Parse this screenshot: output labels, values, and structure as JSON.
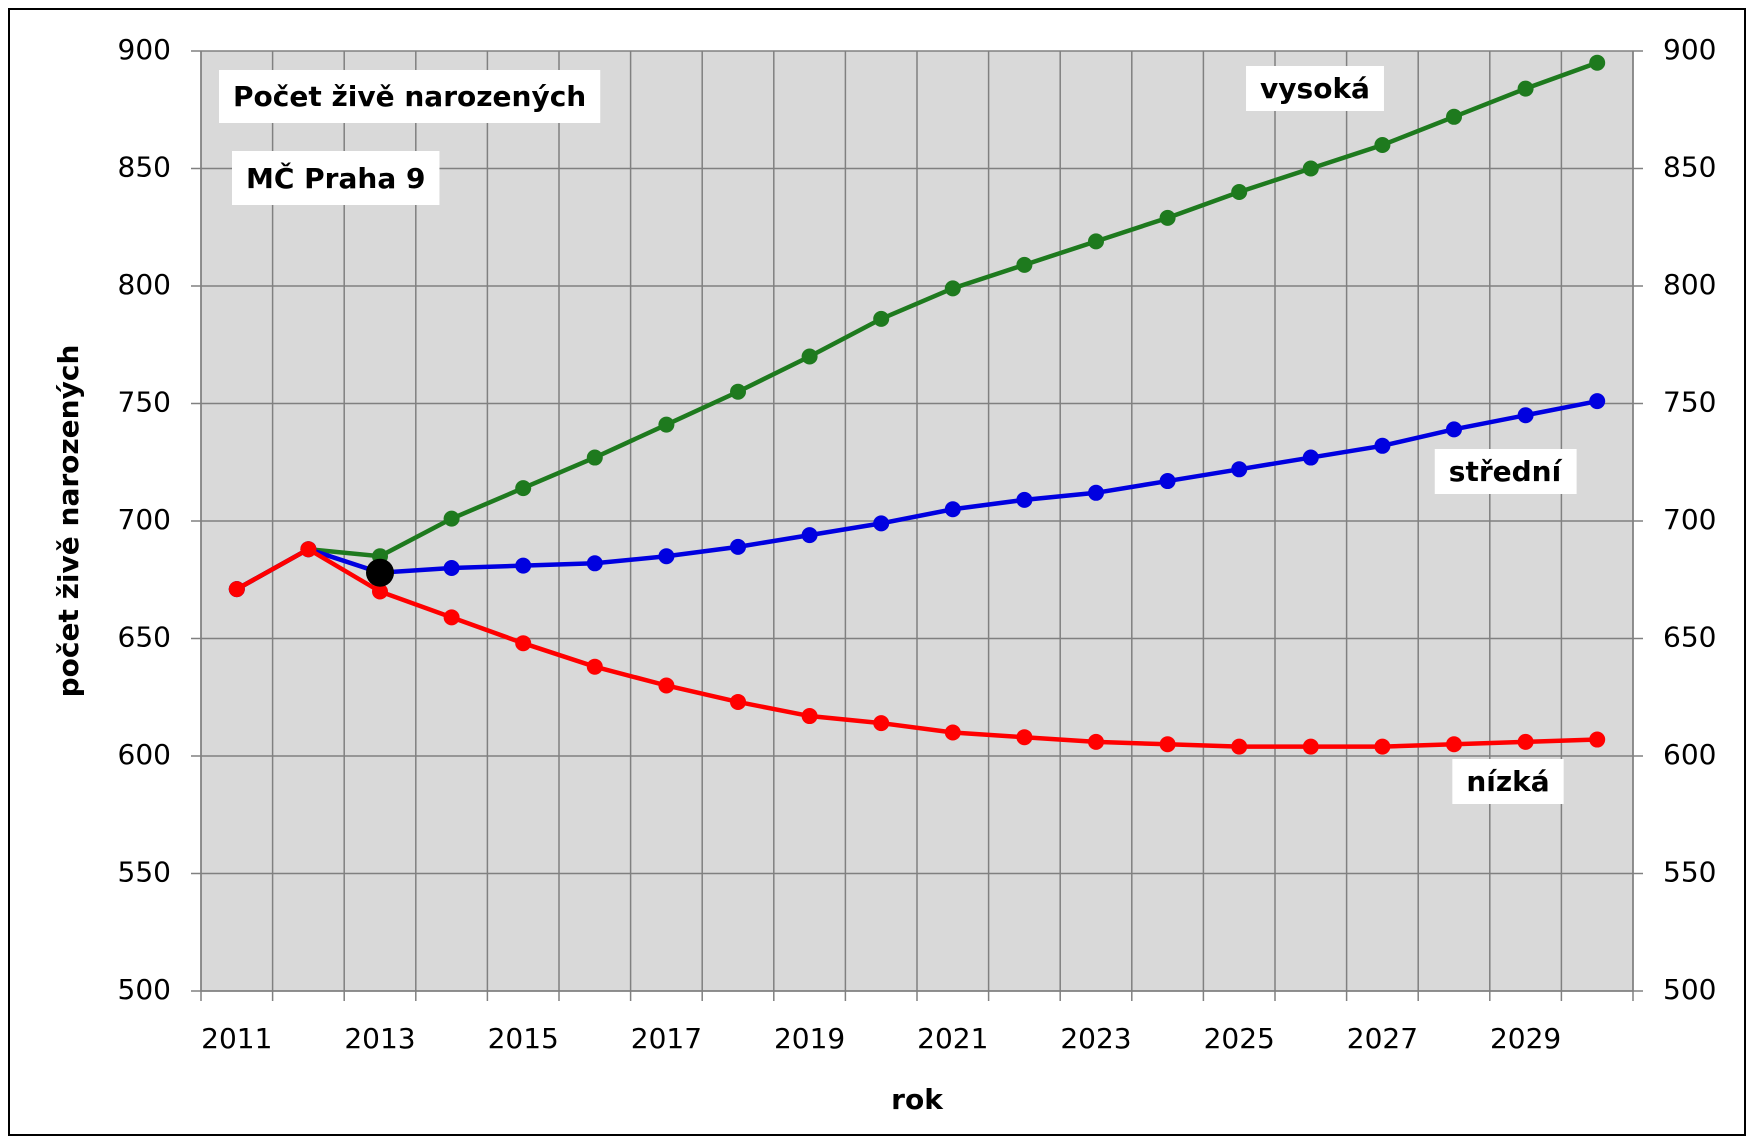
{
  "chart_data": {
    "type": "line",
    "title": "Počet živě narozených",
    "subtitle": "MČ Praha 9",
    "x_label": "rok",
    "y_label": "počet živě narozených",
    "x": [
      2011,
      2012,
      2013,
      2014,
      2015,
      2016,
      2017,
      2018,
      2019,
      2020,
      2021,
      2022,
      2023,
      2024,
      2025,
      2026,
      2027,
      2028,
      2029,
      2030
    ],
    "xlim": [
      2010.5,
      2030.5
    ],
    "xticks": [
      2011,
      2013,
      2015,
      2017,
      2019,
      2021,
      2023,
      2025,
      2027,
      2029
    ],
    "ylim": [
      500,
      900
    ],
    "yticks": [
      500,
      550,
      600,
      650,
      700,
      750,
      800,
      850,
      900
    ],
    "y2lim": [
      500,
      900
    ],
    "y2ticks": [
      500,
      550,
      600,
      650,
      700,
      750,
      800,
      850,
      900
    ],
    "grid": true,
    "series": [
      {
        "name": "vysoká",
        "color": "#1e7a1e",
        "values": [
          671,
          688,
          685,
          701,
          714,
          727,
          741,
          755,
          770,
          786,
          799,
          809,
          819,
          829,
          840,
          850,
          860,
          872,
          884,
          895
        ]
      },
      {
        "name": "střední",
        "color": "#0000e0",
        "values": [
          671,
          688,
          678,
          680,
          681,
          682,
          685,
          689,
          694,
          699,
          705,
          709,
          712,
          717,
          722,
          727,
          732,
          739,
          745,
          751
        ]
      },
      {
        "name": "nízká",
        "color": "#ff0000",
        "values": [
          671,
          688,
          670,
          659,
          648,
          638,
          630,
          623,
          617,
          614,
          610,
          608,
          606,
          605,
          604,
          604,
          604,
          605,
          606,
          607
        ]
      }
    ],
    "highlight": {
      "x": 2013,
      "value": 678,
      "color": "#000000"
    }
  }
}
